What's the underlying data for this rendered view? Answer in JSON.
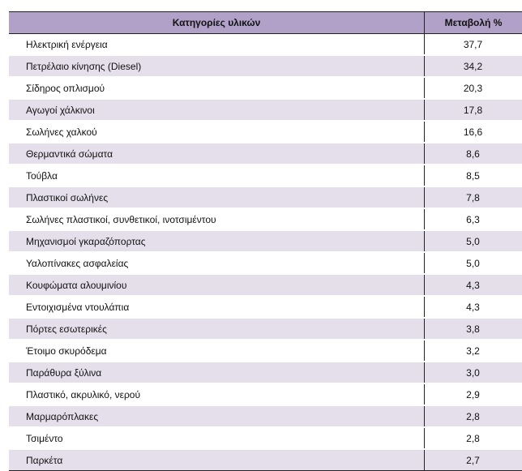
{
  "table": {
    "headers": [
      "Κατηγορίες υλικών",
      "Μεταβολή %"
    ],
    "rows": [
      {
        "name": "Ηλεκτρική ενέργεια",
        "value": "37,7"
      },
      {
        "name": "Πετρέλαιο κίνησης (Diesel)",
        "value": "34,2"
      },
      {
        "name": "Σίδηρος οπλισμού",
        "value": "20,3"
      },
      {
        "name": "Αγωγοί χάλκινοι",
        "value": "17,8"
      },
      {
        "name": "Σωλήνες χαλκού",
        "value": "16,6"
      },
      {
        "name": "Θερμαντικά σώματα",
        "value": "8,6"
      },
      {
        "name": "Τούβλα",
        "value": "8,5"
      },
      {
        "name": "Πλαστικοί σωλήνες",
        "value": "7,8"
      },
      {
        "name": "Σωλήνες πλαστικοί, συνθετικοί, ινοτσιμέντου",
        "value": "6,3"
      },
      {
        "name": "Μηχανισμοί γκαραζόπορτας",
        "value": "5,0"
      },
      {
        "name": "Υαλοπίνακες ασφαλείας",
        "value": "5,0"
      },
      {
        "name": "Κουφώματα αλουμινίου",
        "value": "4,3"
      },
      {
        "name": "Εντοιχισμένα ντουλάπια",
        "value": "4,3"
      },
      {
        "name": "Πόρτες εσωτερικές",
        "value": "3,8"
      },
      {
        "name": "Έτοιμο σκυρόδεμα",
        "value": "3,2"
      },
      {
        "name": "Παράθυρα ξύλινα",
        "value": "3,0"
      },
      {
        "name": "Πλαστικό, ακρυλικό, νερού",
        "value": "2,9"
      },
      {
        "name": "Μαρμαρόπλακες",
        "value": "2,8"
      },
      {
        "name": "Τσιμέντο",
        "value": "2,8"
      },
      {
        "name": "Παρκέτα",
        "value": "2,7"
      }
    ]
  },
  "colors": {
    "header": "#b1a0c7",
    "stripe": "#e5dfec"
  }
}
